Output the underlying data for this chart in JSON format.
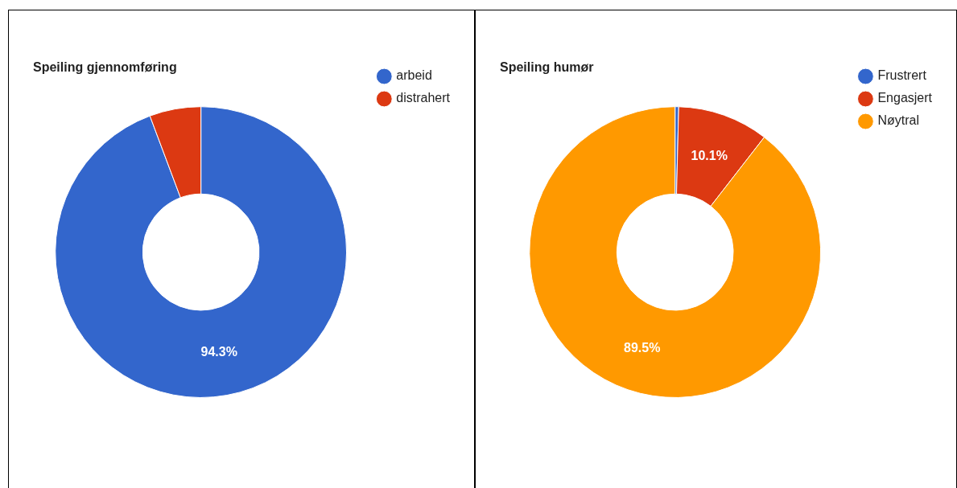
{
  "chart_data": [
    {
      "type": "donut",
      "title": "Speiling gjennomføring",
      "categories": [
        "arbeid",
        "distrahert"
      ],
      "values": [
        94.3,
        5.7
      ],
      "colors": [
        "#3366cc",
        "#dc3912"
      ],
      "value_labels": [
        "94.3%",
        null
      ],
      "legend": "top right"
    },
    {
      "type": "donut",
      "title": "Speiling humør",
      "categories": [
        "Frustrert",
        "Engasjert",
        "Nøytral"
      ],
      "values": [
        0.4,
        10.1,
        89.5
      ],
      "colors": [
        "#3366cc",
        "#dc3912",
        "#ff9900"
      ],
      "value_labels": [
        null,
        "10.1%",
        "89.5%"
      ],
      "legend": "top right"
    }
  ]
}
